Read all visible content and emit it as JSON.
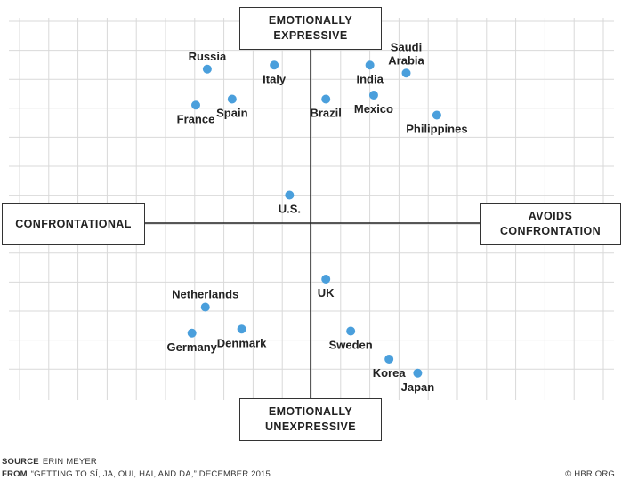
{
  "chart_data": {
    "type": "scatter",
    "title": "",
    "xlabel": "",
    "ylabel": "",
    "x_axis": {
      "left_label": "CONFRONTATIONAL",
      "right_label": [
        "AVOIDS",
        "CONFRONTATION"
      ]
    },
    "y_axis": {
      "top_label": [
        "EMOTIONALLY",
        "EXPRESSIVE"
      ],
      "bottom_label": [
        "EMOTIONALLY",
        "UNEXPRESSIVE"
      ]
    },
    "xlim": [
      -10,
      10
    ],
    "ylim": [
      -10,
      10
    ],
    "grid": true,
    "point_color": "#4a9fdc",
    "points": [
      {
        "name": "Russia",
        "lines": [
          "Russia"
        ],
        "x": -5.4,
        "y": 7.7,
        "label_pos": "above"
      },
      {
        "name": "France",
        "lines": [
          "France"
        ],
        "x": -6.0,
        "y": 5.9,
        "label_pos": "below"
      },
      {
        "name": "Spain",
        "lines": [
          "Spain"
        ],
        "x": -4.1,
        "y": 6.2,
        "label_pos": "below"
      },
      {
        "name": "Italy",
        "lines": [
          "Italy"
        ],
        "x": -1.9,
        "y": 7.9,
        "label_pos": "below"
      },
      {
        "name": "Brazil",
        "lines": [
          "Brazil"
        ],
        "x": 0.8,
        "y": 6.2,
        "label_pos": "below"
      },
      {
        "name": "India",
        "lines": [
          "India"
        ],
        "x": 3.1,
        "y": 7.9,
        "label_pos": "below"
      },
      {
        "name": "Mexico",
        "lines": [
          "Mexico"
        ],
        "x": 3.3,
        "y": 6.4,
        "label_pos": "below"
      },
      {
        "name": "Saudi Arabia",
        "lines": [
          "Saudi",
          "Arabia"
        ],
        "x": 5.0,
        "y": 7.5,
        "label_pos": "above"
      },
      {
        "name": "Philippines",
        "lines": [
          "Philippines"
        ],
        "x": 6.6,
        "y": 5.4,
        "label_pos": "below"
      },
      {
        "name": "U.S.",
        "lines": [
          "U.S."
        ],
        "x": -1.1,
        "y": 1.4,
        "label_pos": "below"
      },
      {
        "name": "UK",
        "lines": [
          "UK"
        ],
        "x": 0.8,
        "y": -2.8,
        "label_pos": "below"
      },
      {
        "name": "Netherlands",
        "lines": [
          "Netherlands"
        ],
        "x": -5.5,
        "y": -4.2,
        "label_pos": "above"
      },
      {
        "name": "Germany",
        "lines": [
          "Germany"
        ],
        "x": -6.2,
        "y": -5.5,
        "label_pos": "below"
      },
      {
        "name": "Denmark",
        "lines": [
          "Denmark"
        ],
        "x": -3.6,
        "y": -5.3,
        "label_pos": "below"
      },
      {
        "name": "Sweden",
        "lines": [
          "Sweden"
        ],
        "x": 2.1,
        "y": -5.4,
        "label_pos": "below"
      },
      {
        "name": "Korea",
        "lines": [
          "Korea"
        ],
        "x": 4.1,
        "y": -6.8,
        "label_pos": "below"
      },
      {
        "name": "Japan",
        "lines": [
          "Japan"
        ],
        "x": 5.6,
        "y": -7.5,
        "label_pos": "below"
      }
    ]
  },
  "footer": {
    "source_label": "SOURCE",
    "source_text": "ERIN MEYER",
    "from_label": "FROM",
    "from_text": "“GETTING TO SÍ, JA, OUI, HAI, AND DA,” DECEMBER 2015",
    "credit": "© HBR.ORG"
  }
}
